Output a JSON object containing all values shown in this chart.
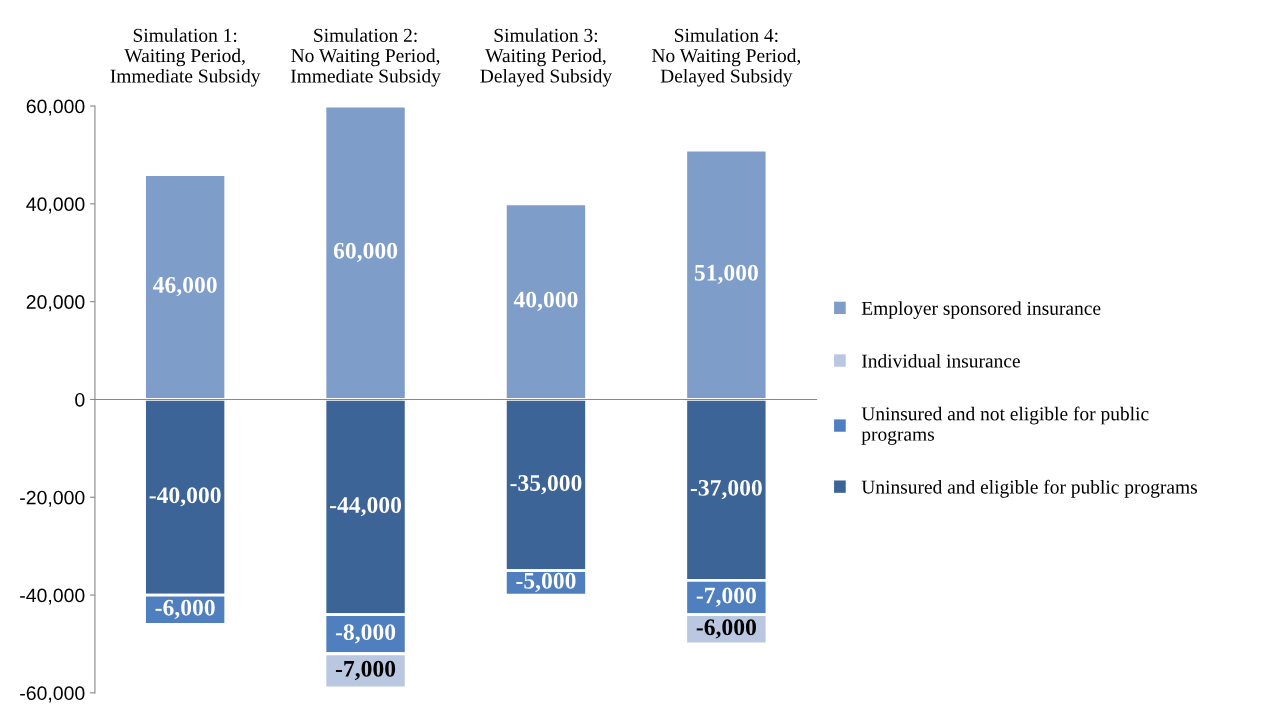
{
  "chart_data": {
    "type": "bar",
    "stacked": true,
    "categories": [
      "Simulation 1:\nWaiting Period,\nImmediate Subsidy",
      "Simulation 2:\nNo Waiting Period,\nImmediate Subsidy",
      "Simulation 3:\nWaiting Period,\nDelayed Subsidy",
      "Simulation 4:\nNo Waiting Period,\nDelayed Subsidy"
    ],
    "series": [
      {
        "name": "Employer sponsored insurance",
        "color": "#7f9dc9",
        "values": [
          46000,
          60000,
          40000,
          51000
        ],
        "value_labels": [
          "46,000",
          "60,000",
          "40,000",
          "51,000"
        ]
      },
      {
        "name": "Uninsured and eligible for public programs",
        "color": "#3d6496",
        "values": [
          -40000,
          -44000,
          -35000,
          -37000
        ],
        "value_labels": [
          "-40,000",
          "-44,000",
          "-35,000",
          "-37,000"
        ]
      },
      {
        "name": "Uninsured and not eligible for public\nprograms",
        "color": "#4f7fbe",
        "values": [
          -6000,
          -8000,
          -5000,
          -7000
        ],
        "value_labels": [
          "-6,000",
          "-8,000",
          "-5,000",
          "-7,000"
        ]
      },
      {
        "name": "Individual insurance",
        "color": "#b9c7e0",
        "values": [
          null,
          -7000,
          null,
          -6000
        ],
        "value_labels": [
          null,
          "-7,000",
          null,
          "-6,000"
        ]
      }
    ],
    "ylim": [
      -60000,
      60000
    ],
    "yticks": [
      {
        "value": -60000,
        "label": "-60,000"
      },
      {
        "value": -40000,
        "label": "-40,000"
      },
      {
        "value": -20000,
        "label": "-20,000"
      },
      {
        "value": 0,
        "label": "0"
      },
      {
        "value": 20000,
        "label": "20,000"
      },
      {
        "value": 40000,
        "label": "40,000"
      },
      {
        "value": 60000,
        "label": "60,000"
      }
    ],
    "legend": "right"
  }
}
